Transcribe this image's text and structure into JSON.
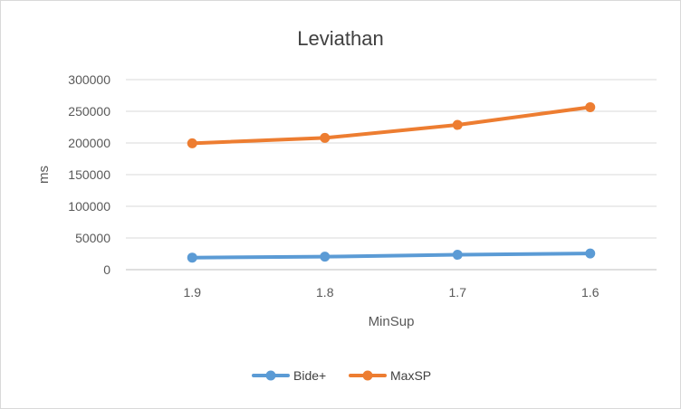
{
  "chart_data": {
    "type": "line",
    "title": "Leviathan",
    "xlabel": "MinSup",
    "ylabel": "ms",
    "categories": [
      "1.9",
      "1.8",
      "1.7",
      "1.6"
    ],
    "ylim": [
      0,
      300000
    ],
    "yticks": [
      0,
      50000,
      100000,
      150000,
      200000,
      250000,
      300000
    ],
    "grid": true,
    "legend_position": "bottom",
    "series": [
      {
        "name": "Bide+",
        "color": "#5b9bd5",
        "values": [
          19000,
          20500,
          23500,
          25500
        ]
      },
      {
        "name": "MaxSP",
        "color": "#ed7d31",
        "values": [
          199500,
          208000,
          228500,
          256500
        ]
      }
    ]
  }
}
